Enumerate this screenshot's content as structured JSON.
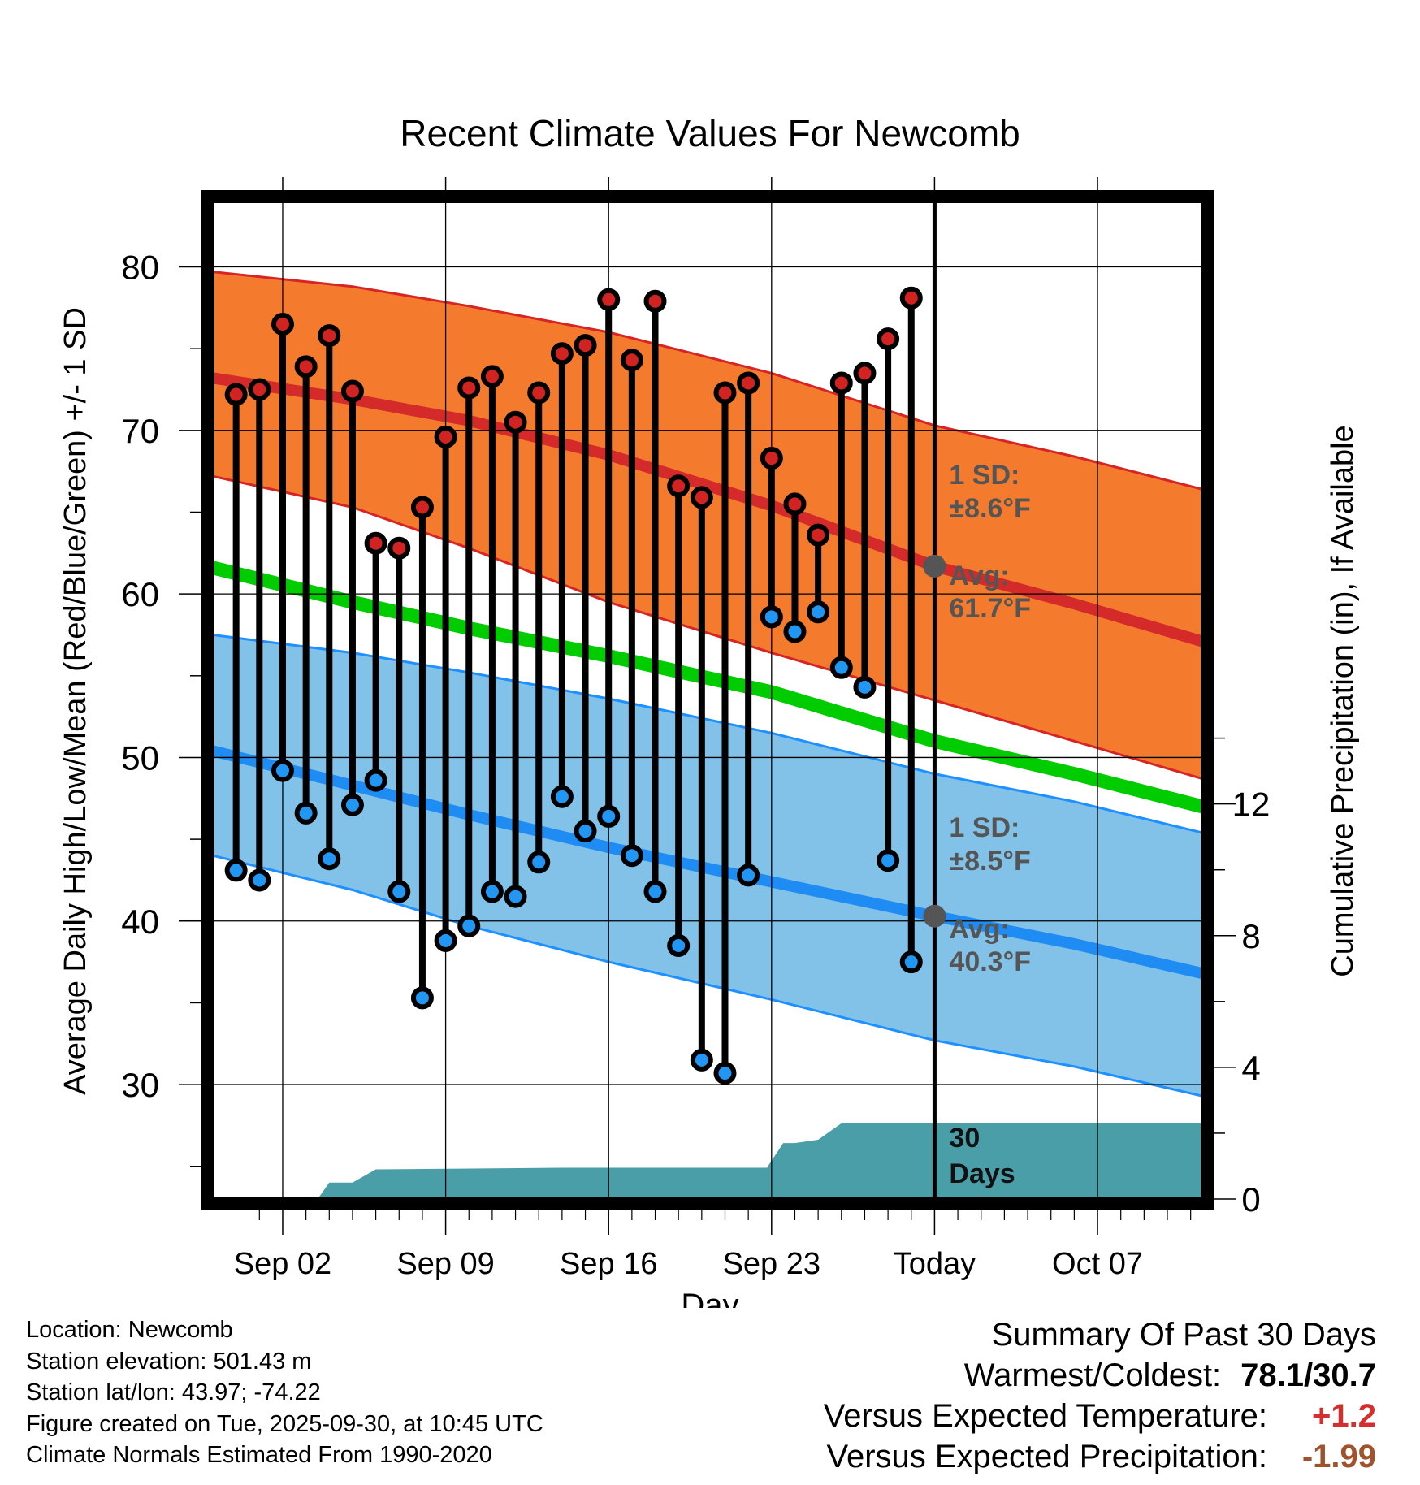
{
  "chart_data": {
    "type": "line",
    "title": "Recent Climate Values For Newcomb",
    "xlabel": "Day",
    "ylabel": "Average Daily High/Low/Mean (Red/Blue/Green) +/- 1 SD",
    "y2label": "Cumulative Precipitation (in), If Available",
    "ylim": [
      23,
      84
    ],
    "y2lim": [
      0,
      30.3
    ],
    "yticks": [
      "30",
      "40",
      "50",
      "60",
      "70",
      "80"
    ],
    "y2ticks": [
      "0",
      "4",
      "8",
      "12"
    ],
    "xlim": [
      -2,
      40.5
    ],
    "x_ticks": [
      {
        "day": 1,
        "label": "Sep 02"
      },
      {
        "day": 8,
        "label": "Sep 09"
      },
      {
        "day": 15,
        "label": "Sep 16"
      },
      {
        "day": 22,
        "label": "Sep 23"
      },
      {
        "day": 29,
        "label": "Today"
      },
      {
        "day": 36,
        "label": "Oct 07"
      }
    ],
    "today_day": 29,
    "daily_high": [
      72.2,
      72.5,
      76.5,
      73.9,
      75.8,
      72.4,
      63.1,
      62.8,
      65.3,
      69.6,
      72.6,
      73.3,
      70.5,
      72.3,
      74.7,
      75.2,
      78.0,
      74.3,
      77.9,
      66.6,
      65.9,
      72.3,
      72.9,
      68.3,
      65.5,
      63.6,
      72.9,
      73.5,
      75.6,
      78.1
    ],
    "daily_low": [
      43.1,
      42.5,
      49.2,
      46.6,
      43.8,
      47.1,
      48.6,
      41.8,
      35.3,
      38.8,
      39.7,
      41.8,
      41.5,
      43.6,
      47.6,
      45.5,
      46.4,
      44.0,
      41.8,
      38.5,
      31.5,
      30.7,
      42.8,
      58.6,
      57.7,
      58.9,
      55.5,
      54.3,
      43.7,
      37.5
    ],
    "normal_high": {
      "x": [
        -2,
        4,
        9,
        15,
        22,
        29,
        35,
        40.5
      ],
      "values": [
        73.2,
        71.9,
        70.6,
        68.5,
        65.4,
        61.7,
        59.4,
        57.1
      ]
    },
    "normal_low": {
      "x": [
        -2,
        4,
        9,
        15,
        22,
        29,
        35,
        40.5
      ],
      "values": [
        50.4,
        48.3,
        46.5,
        44.5,
        42.4,
        40.3,
        38.6,
        36.8
      ]
    },
    "normal_mean": {
      "x": [
        -2,
        4,
        9,
        15,
        22,
        29,
        35,
        40.5
      ],
      "values": [
        61.6,
        59.5,
        57.9,
        56.2,
        54.0,
        51.0,
        49.0,
        47.0
      ]
    },
    "high_sd_band": {
      "x": [
        -2,
        4,
        9,
        15,
        22,
        29,
        35,
        40.5
      ],
      "upper": [
        79.7,
        78.8,
        77.6,
        76.0,
        73.5,
        70.3,
        68.4,
        66.4
      ],
      "lower": [
        67.2,
        65.3,
        62.8,
        59.5,
        56.4,
        53.5,
        51.0,
        48.7
      ]
    },
    "low_sd_band": {
      "x": [
        -2,
        4,
        9,
        15,
        22,
        29,
        35,
        40.5
      ],
      "upper": [
        57.5,
        56.4,
        55.2,
        53.6,
        51.5,
        49.0,
        47.3,
        45.4
      ],
      "lower": [
        44.0,
        41.9,
        39.7,
        37.5,
        35.2,
        32.7,
        31.1,
        29.3
      ]
    },
    "precip_cumulative": {
      "x": [
        -2,
        2.5,
        3,
        4,
        5,
        13,
        21.8,
        22.5,
        23,
        24,
        25,
        40.5
      ],
      "values": [
        0,
        0,
        0.5,
        0.5,
        0.9,
        0.95,
        0.95,
        1.7,
        1.7,
        1.8,
        2.3,
        2.3
      ]
    },
    "annotations": {
      "high_sd_line1": "1 SD:",
      "high_sd_line2": "±8.6°F",
      "high_avg_line1": "Avg:",
      "high_avg_line2": "61.7°F",
      "low_sd_line1": "1 SD:",
      "low_sd_line2": "±8.5°F",
      "low_avg_line1": "Avg:",
      "low_avg_line2": "40.3°F",
      "days_line1": "30",
      "days_line2": "Days"
    },
    "colors": {
      "high_band": "#f47b2e",
      "high_band_edge": "#d72525",
      "high_line": "#d42a2a",
      "low_band": "#82c2e8",
      "low_band_edge": "#1e90ff",
      "low_line": "#1e8cf2",
      "mean_line": "#00cc00",
      "precip": "#4a9ea8",
      "high_marker": "#d22323",
      "low_marker": "#2196f3",
      "annotation": "#555555"
    }
  },
  "metadata": {
    "location": "Location: Newcomb",
    "elevation": "Station elevation: 501.43 m",
    "latlon": "Station lat/lon: 43.97; -74.22",
    "created": "Figure created on Tue, 2025-09-30, at 10:45 UTC",
    "normals": "Climate Normals Estimated From 1990-2020"
  },
  "summary": {
    "title": "Summary Of Past 30 Days",
    "warmest_label": "Warmest/Coldest:",
    "warmest_value": "78.1/30.7",
    "temp_label": "Versus Expected Temperature:",
    "temp_value": "+1.2",
    "temp_color": "#d32f2f",
    "precip_label": "Versus Expected Precipitation:",
    "precip_value": "-1.99",
    "precip_color": "#a0522d"
  }
}
